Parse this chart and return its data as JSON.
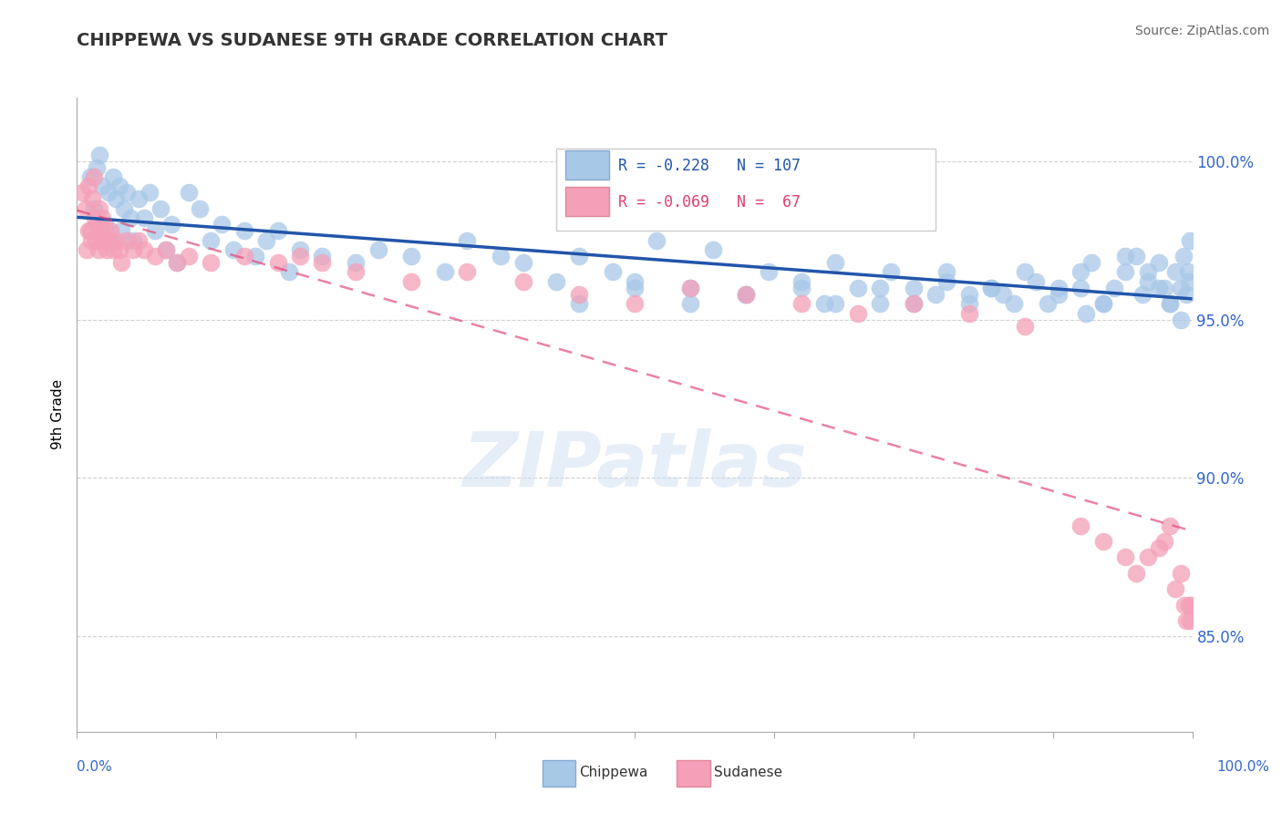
{
  "title": "CHIPPEWA VS SUDANESE 9TH GRADE CORRELATION CHART",
  "source": "Source: ZipAtlas.com",
  "ylabel": "9th Grade",
  "ytick_values": [
    85.0,
    90.0,
    95.0,
    100.0
  ],
  "ymin": 82.0,
  "ymax": 102.0,
  "xmin": 0.0,
  "xmax": 100.0,
  "chippewa_R": -0.228,
  "chippewa_N": 107,
  "sudanese_R": -0.069,
  "sudanese_N": 67,
  "chippewa_color": "#a8c8e8",
  "sudanese_color": "#f4a0b8",
  "chippewa_line_color": "#2255aa",
  "sudanese_line_color": "#e04070",
  "watermark": "ZIPatlas",
  "legend_label_chippewa": "Chippewa",
  "legend_label_sudanese": "Sudanese",
  "chippewa_x": [
    1.2,
    1.5,
    1.8,
    2.0,
    2.3,
    2.5,
    2.8,
    3.0,
    3.2,
    3.5,
    3.8,
    4.0,
    4.2,
    4.5,
    4.8,
    5.0,
    5.5,
    6.0,
    6.5,
    7.0,
    7.5,
    8.0,
    8.5,
    9.0,
    10.0,
    11.0,
    12.0,
    13.0,
    14.0,
    15.0,
    16.0,
    17.0,
    18.0,
    19.0,
    20.0,
    22.0,
    25.0,
    27.0,
    30.0,
    33.0,
    35.0,
    38.0,
    40.0,
    43.0,
    45.0,
    48.0,
    50.0,
    52.0,
    55.0,
    57.0,
    60.0,
    62.0,
    65.0,
    67.0,
    68.0,
    70.0,
    72.0,
    73.0,
    75.0,
    77.0,
    78.0,
    80.0,
    82.0,
    83.0,
    85.0,
    87.0,
    88.0,
    90.0,
    90.5,
    91.0,
    92.0,
    93.0,
    94.0,
    95.0,
    95.5,
    96.0,
    97.0,
    97.5,
    98.0,
    98.5,
    99.0,
    99.2,
    99.5,
    99.6,
    99.7,
    99.8,
    99.0,
    98.0,
    97.0,
    96.0,
    94.0,
    92.0,
    90.0,
    88.0,
    86.0,
    84.0,
    82.0,
    80.0,
    78.0,
    75.0,
    72.0,
    68.0,
    65.0,
    60.0,
    55.0,
    50.0,
    45.0
  ],
  "chippewa_y": [
    99.5,
    98.5,
    99.8,
    100.2,
    99.2,
    98.0,
    99.0,
    97.5,
    99.5,
    98.8,
    99.2,
    97.8,
    98.5,
    99.0,
    98.2,
    97.5,
    98.8,
    98.2,
    99.0,
    97.8,
    98.5,
    97.2,
    98.0,
    96.8,
    99.0,
    98.5,
    97.5,
    98.0,
    97.2,
    97.8,
    97.0,
    97.5,
    97.8,
    96.5,
    97.2,
    97.0,
    96.8,
    97.2,
    97.0,
    96.5,
    97.5,
    97.0,
    96.8,
    96.2,
    97.0,
    96.5,
    96.2,
    97.5,
    96.0,
    97.2,
    95.8,
    96.5,
    96.2,
    95.5,
    96.8,
    96.0,
    95.5,
    96.5,
    96.0,
    95.8,
    96.2,
    95.5,
    96.0,
    95.8,
    96.5,
    95.5,
    96.0,
    96.5,
    95.2,
    96.8,
    95.5,
    96.0,
    96.5,
    97.0,
    95.8,
    96.2,
    96.8,
    96.0,
    95.5,
    96.5,
    96.0,
    97.0,
    95.8,
    96.5,
    96.2,
    97.5,
    95.0,
    95.5,
    96.0,
    96.5,
    97.0,
    95.5,
    96.0,
    95.8,
    96.2,
    95.5,
    96.0,
    95.8,
    96.5,
    95.5,
    96.0,
    95.5,
    96.0,
    95.8,
    95.5,
    96.0,
    95.5
  ],
  "sudanese_x": [
    0.5,
    0.8,
    1.0,
    1.2,
    1.4,
    1.5,
    1.6,
    1.7,
    1.8,
    1.9,
    2.0,
    2.1,
    2.2,
    2.3,
    2.4,
    2.5,
    2.7,
    2.8,
    3.0,
    3.2,
    3.5,
    3.8,
    4.0,
    4.5,
    5.0,
    5.5,
    6.0,
    7.0,
    8.0,
    9.0,
    10.0,
    12.0,
    15.0,
    18.0,
    20.0,
    22.0,
    25.0,
    30.0,
    35.0,
    40.0,
    45.0,
    50.0,
    55.0,
    60.0,
    65.0,
    70.0,
    75.0,
    80.0,
    85.0,
    90.0,
    92.0,
    94.0,
    95.0,
    96.0,
    97.0,
    97.5,
    98.0,
    98.5,
    99.0,
    99.3,
    99.5,
    99.7,
    99.8,
    99.9,
    1.3,
    1.0,
    0.9
  ],
  "sudanese_y": [
    99.0,
    98.5,
    99.2,
    97.8,
    98.8,
    99.5,
    98.2,
    97.5,
    98.0,
    97.2,
    98.5,
    97.8,
    97.5,
    98.2,
    97.5,
    97.8,
    97.2,
    97.5,
    97.8,
    97.2,
    97.5,
    97.2,
    96.8,
    97.5,
    97.2,
    97.5,
    97.2,
    97.0,
    97.2,
    96.8,
    97.0,
    96.8,
    97.0,
    96.8,
    97.0,
    96.8,
    96.5,
    96.2,
    96.5,
    96.2,
    95.8,
    95.5,
    96.0,
    95.8,
    95.5,
    95.2,
    95.5,
    95.2,
    94.8,
    88.5,
    88.0,
    87.5,
    87.0,
    87.5,
    87.8,
    88.0,
    88.5,
    86.5,
    87.0,
    86.0,
    85.5,
    86.0,
    85.5,
    86.0,
    97.5,
    97.8,
    97.2
  ]
}
